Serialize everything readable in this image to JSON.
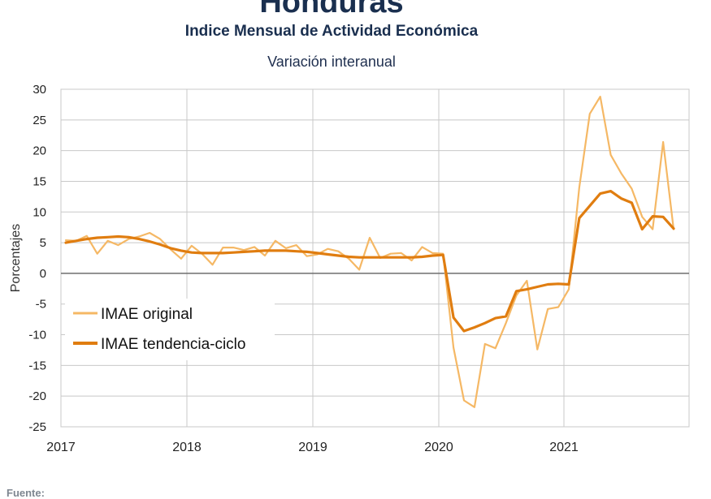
{
  "header": {
    "country": "Honduras",
    "subtitle": "Indice Mensual de  Actividad Económica",
    "subtitle2": "Variación interanual"
  },
  "footer": {
    "source_label": "Fuente:"
  },
  "chart_data": {
    "type": "line",
    "title": "Honduras",
    "subtitle": "Indice Mensual de  Actividad Económica — Variación interanual",
    "xlabel": "",
    "ylabel": "Porcentajes",
    "ylim": [
      -25,
      30
    ],
    "yticks": [
      30,
      25,
      20,
      15,
      10,
      5,
      0,
      -5,
      -10,
      -15,
      -20,
      -25
    ],
    "xticks": [
      "2017",
      "2018",
      "2019",
      "2020",
      "2021"
    ],
    "x_start": "2017-01",
    "x_end": "2021-12",
    "grid": true,
    "legend_position": "lower-left",
    "colors": {
      "original": "#f5b865",
      "trend": "#e07d10",
      "zero_line": "#6e6e6e",
      "grid": "#c8c8c8"
    },
    "series": [
      {
        "name": "IMAE original",
        "values": [
          5.4,
          5.3,
          6.1,
          3.2,
          5.3,
          4.6,
          5.6,
          6.0,
          6.6,
          5.6,
          3.9,
          2.4,
          4.5,
          3.2,
          1.4,
          4.2,
          4.2,
          3.8,
          4.3,
          2.9,
          5.3,
          4.1,
          4.6,
          2.8,
          3.1,
          4.0,
          3.6,
          2.4,
          0.6,
          5.8,
          2.5,
          3.2,
          3.3,
          2.1,
          4.3,
          3.3,
          3.2,
          -12.1,
          -20.7,
          -21.8,
          -11.5,
          -12.2,
          -8.1,
          -3.6,
          -1.2,
          -12.4,
          -5.8,
          -5.5,
          -2.6,
          14.0,
          26.0,
          28.8,
          19.3,
          16.3,
          13.8,
          9.2,
          7.2,
          21.4,
          7.2
        ]
      },
      {
        "name": "IMAE tendencia-ciclo",
        "values": [
          5.0,
          5.3,
          5.6,
          5.8,
          5.9,
          6.0,
          5.9,
          5.6,
          5.2,
          4.7,
          4.1,
          3.7,
          3.4,
          3.3,
          3.3,
          3.3,
          3.4,
          3.5,
          3.6,
          3.7,
          3.7,
          3.7,
          3.6,
          3.5,
          3.3,
          3.1,
          2.9,
          2.7,
          2.6,
          2.6,
          2.6,
          2.6,
          2.6,
          2.6,
          2.7,
          2.9,
          3.0,
          -7.2,
          -9.4,
          -8.8,
          -8.1,
          -7.3,
          -7.0,
          -2.9,
          -2.6,
          -2.2,
          -1.8,
          -1.7,
          -1.8,
          9.0,
          11.0,
          13.0,
          13.4,
          12.2,
          11.5,
          7.2,
          9.3,
          9.2,
          7.3
        ]
      }
    ]
  }
}
